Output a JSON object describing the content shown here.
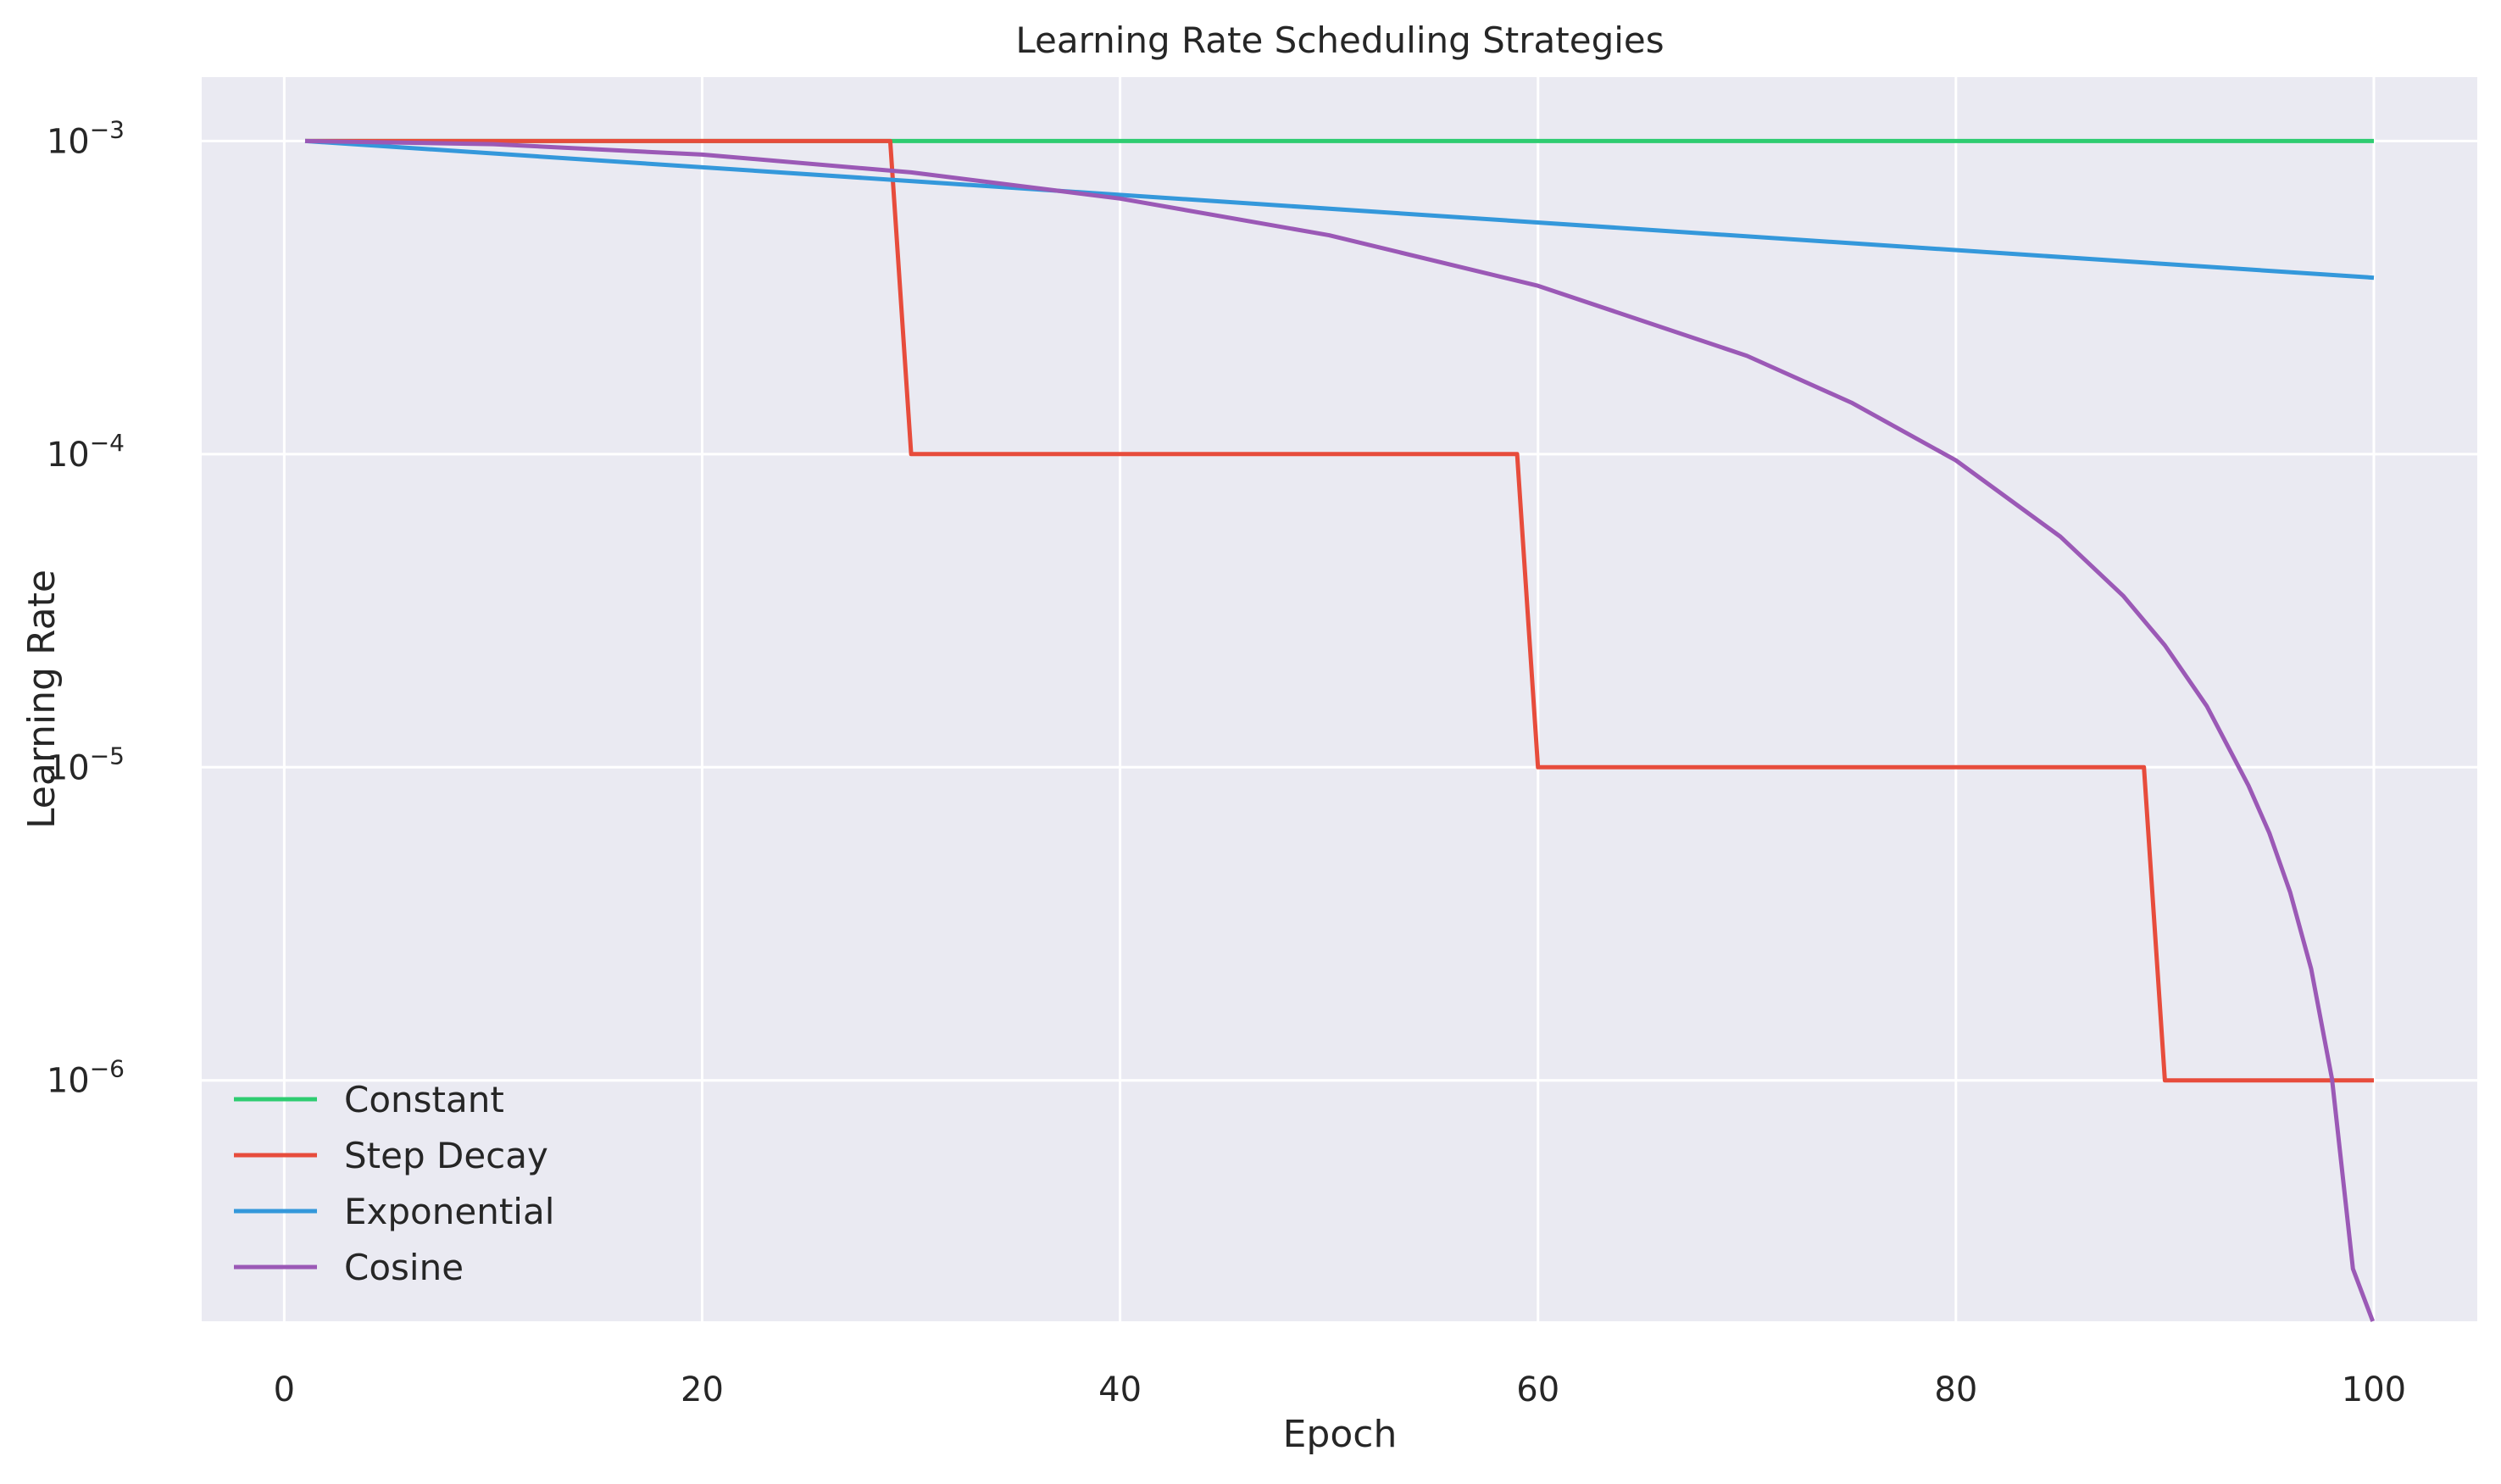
{
  "chart_data": {
    "type": "line",
    "title": "Learning Rate Scheduling Strategies",
    "xlabel": "Epoch",
    "ylabel": "Learning Rate",
    "xlim": [
      -3.95,
      104.95
    ],
    "ylim": [
      1.7e-07,
      0.0016
    ],
    "y_scale": "log",
    "grid": true,
    "legend_position": "lower-left",
    "x_ticks": [
      {
        "value": 0,
        "label": "0"
      },
      {
        "value": 20,
        "label": "20"
      },
      {
        "value": 40,
        "label": "40"
      },
      {
        "value": 60,
        "label": "60"
      },
      {
        "value": 80,
        "label": "80"
      },
      {
        "value": 100,
        "label": "100"
      }
    ],
    "y_ticks": [
      {
        "value": 0.001,
        "base": "10",
        "exp": "−3"
      },
      {
        "value": 0.0001,
        "base": "10",
        "exp": "−4"
      },
      {
        "value": 1e-05,
        "base": "10",
        "exp": "−5"
      },
      {
        "value": 1e-06,
        "base": "10",
        "exp": "−6"
      }
    ],
    "series": [
      {
        "name": "Constant",
        "color": "#2ecc71",
        "x": [
          1,
          100
        ],
        "y": [
          0.001,
          0.001
        ]
      },
      {
        "name": "Step Decay",
        "color": "#e74c3c",
        "x": [
          1,
          29,
          30,
          59,
          60,
          89,
          90,
          100
        ],
        "y": [
          0.001,
          0.001,
          0.0001,
          0.0001,
          1e-05,
          1e-05,
          1e-06,
          1e-06
        ]
      },
      {
        "name": "Exponential",
        "color": "#3498db",
        "x": [
          1,
          100
        ],
        "y": [
          0.001,
          0.000366
        ]
      },
      {
        "name": "Cosine",
        "color": "#9b59b6",
        "x": [
          1,
          10,
          20,
          30,
          40,
          50,
          60,
          70,
          75,
          80,
          85,
          88,
          90,
          92,
          94,
          95,
          96,
          97,
          98,
          99,
          99.95
        ],
        "y": [
          0.001,
          0.000977,
          0.000905,
          0.000794,
          0.000655,
          0.0005,
          0.000345,
          0.000206,
          0.000146,
          9.55e-05,
          5.45e-05,
          3.53e-05,
          2.45e-05,
          1.57e-05,
          8.74e-06,
          6.16e-06,
          3.98e-06,
          2.27e-06,
          1.01e-06,
          2.5e-07,
          1.7e-07
        ]
      }
    ]
  }
}
